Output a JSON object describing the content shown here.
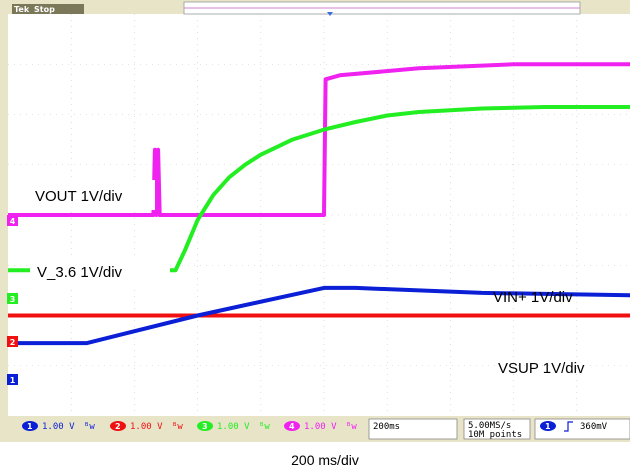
{
  "status": {
    "brand": "Tek",
    "state": "Stop"
  },
  "colors": {
    "background": "#ffffff",
    "ch1": "#0a1fd6",
    "ch2": "#f01010",
    "ch3": "#22ee22",
    "ch4": "#f022f0",
    "frame": "#e8e4c8",
    "trigger": "#3a6fd8"
  },
  "channel_labels": [
    {
      "channel": "4",
      "text": "VOUT 1V/div"
    },
    {
      "channel": "3",
      "text": "V_3.6 1V/div"
    },
    {
      "channel": "1",
      "text": "VIN+ 1V/div"
    },
    {
      "channel": "2",
      "text": "VSUP 1V/div"
    }
  ],
  "markers": [
    "4",
    "3",
    "2",
    "1"
  ],
  "readouts": {
    "ch1_scale": "1.00 V",
    "ch2_scale": "1.00 V",
    "ch3_scale": "1.00 V",
    "ch4_scale": "1.00 V",
    "timebase": "200ms",
    "sample_rate": "5.00MS/s",
    "record_length": "10M points",
    "trigger_channel": "1",
    "trigger_level": "360mV"
  },
  "caption": "200 ms/div",
  "chart_data": {
    "type": "line",
    "x_unit": "ms",
    "xlim": [
      0,
      2000
    ],
    "ylim": [
      0,
      8
    ],
    "y_unit": "div",
    "grid": true,
    "series": [
      {
        "name": "VOUT 1V/div",
        "color": "#f022f0",
        "points": [
          [
            0,
            4.0
          ],
          [
            460,
            4.0
          ],
          [
            465,
            5.3
          ],
          [
            470,
            4.0
          ],
          [
            475,
            5.3
          ],
          [
            480,
            4.0
          ],
          [
            1000,
            4.0
          ],
          [
            1005,
            6.7
          ],
          [
            1050,
            6.78
          ],
          [
            1300,
            6.92
          ],
          [
            1600,
            7.0
          ],
          [
            2000,
            7.0
          ]
        ]
      },
      {
        "name": "V_3.6 1V/div",
        "color": "#22ee22",
        "points": [
          [
            0,
            2.9
          ],
          [
            530,
            2.9
          ],
          [
            560,
            3.3
          ],
          [
            600,
            3.9
          ],
          [
            650,
            4.4
          ],
          [
            700,
            4.75
          ],
          [
            750,
            5.0
          ],
          [
            800,
            5.2
          ],
          [
            850,
            5.35
          ],
          [
            900,
            5.5
          ],
          [
            1000,
            5.7
          ],
          [
            1100,
            5.85
          ],
          [
            1200,
            5.98
          ],
          [
            1300,
            6.05
          ],
          [
            1500,
            6.12
          ],
          [
            1700,
            6.15
          ],
          [
            2000,
            6.15
          ]
        ]
      },
      {
        "name": "VIN+ 1V/div",
        "color": "#0a1fd6",
        "points": [
          [
            0,
            1.45
          ],
          [
            250,
            1.45
          ],
          [
            600,
            2.0
          ],
          [
            1000,
            2.55
          ],
          [
            1100,
            2.55
          ],
          [
            1500,
            2.45
          ],
          [
            2000,
            2.4
          ]
        ]
      },
      {
        "name": "VSUP 1V/div",
        "color": "#f01010",
        "points": [
          [
            0,
            2.0
          ],
          [
            2000,
            2.0
          ]
        ]
      }
    ]
  }
}
